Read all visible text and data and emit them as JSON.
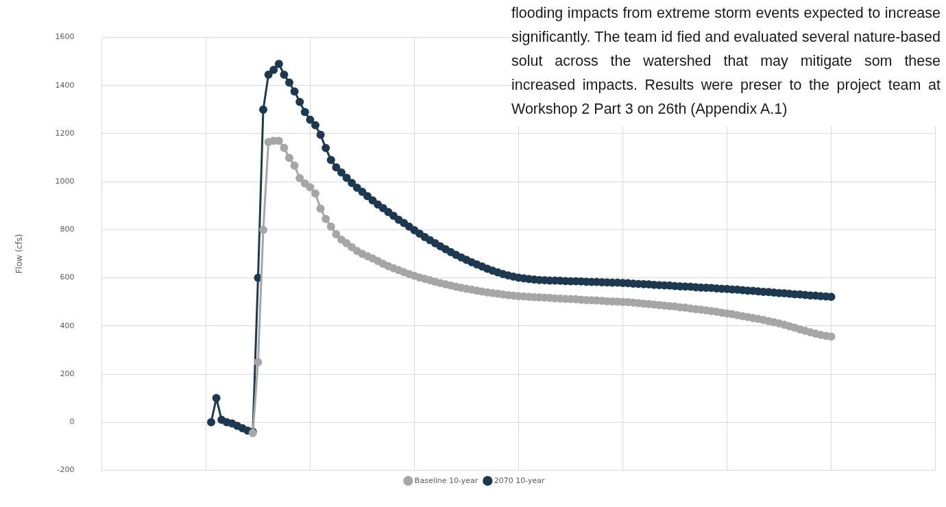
{
  "chart_data": {
    "type": "line",
    "ylabel": "Flow (cfs)",
    "categories": [
      null,
      null,
      null,
      null,
      null,
      null,
      null,
      null,
      null,
      null,
      null,
      null,
      null,
      null,
      null,
      null,
      null,
      null,
      null,
      null,
      null,
      null,
      null,
      null,
      null,
      null,
      null,
      null,
      null,
      null,
      null,
      null,
      null,
      null,
      null,
      null,
      null,
      null,
      null,
      null,
      null,
      null,
      null,
      null,
      null,
      null,
      null,
      null,
      null,
      null,
      null,
      null,
      null,
      null,
      null,
      null,
      null,
      null,
      null,
      null,
      null,
      null,
      null,
      null,
      null,
      null,
      null,
      null,
      null,
      null,
      null,
      null,
      null,
      null,
      null,
      null,
      null,
      null,
      null,
      null,
      null,
      null,
      null,
      null,
      null,
      null,
      null,
      null,
      null,
      null,
      null,
      null,
      null,
      null,
      null,
      null,
      null,
      null,
      null,
      null,
      null,
      null,
      null,
      null,
      null,
      null,
      null,
      null,
      null,
      null,
      null,
      null,
      null,
      null,
      null,
      null,
      null,
      null,
      null,
      null,
      null,
      null,
      null,
      null,
      null,
      null,
      null,
      null,
      null,
      null,
      null,
      null,
      null,
      null,
      null,
      null,
      null,
      null,
      null,
      null,
      null,
      null,
      null,
      null,
      null,
      null,
      null,
      null,
      null,
      null,
      null,
      null,
      null,
      null,
      null,
      null,
      null,
      null,
      null,
      null,
      null
    ],
    "series": [
      {
        "name": "Baseline 10-year",
        "color": "#a6a6a6",
        "values": [
          null,
          null,
          null,
          null,
          null,
          null,
          null,
          null,
          null,
          null,
          null,
          null,
          null,
          null,
          null,
          null,
          null,
          null,
          null,
          null,
          null,
          null,
          null,
          null,
          null,
          null,
          null,
          null,
          null,
          -45,
          250,
          800,
          1165,
          1170,
          1170,
          1141,
          1099,
          1067,
          1015,
          993,
          977,
          951,
          888,
          845,
          813,
          781,
          759,
          744,
          728,
          712,
          700,
          690,
          681,
          670,
          659,
          649,
          640,
          632,
          624,
          616,
          609,
          602,
          596,
          590,
          584,
          578,
          573,
          568,
          563,
          559,
          555,
          551,
          547,
          543,
          540,
          537,
          534,
          531,
          528,
          526,
          524,
          523,
          521,
          520,
          519,
          518,
          517,
          515,
          514,
          513,
          512,
          511,
          509,
          508,
          507,
          506,
          505,
          503,
          502,
          501,
          500,
          499,
          497,
          495,
          493,
          491,
          489,
          487,
          485,
          483,
          481,
          478,
          476,
          473,
          470,
          468,
          465,
          462,
          459,
          455,
          452,
          449,
          445,
          441,
          437,
          433,
          429,
          425,
          420,
          416,
          411,
          405,
          399,
          393,
          386,
          380,
          374,
          368,
          363,
          359,
          356,
          null,
          null,
          null,
          null,
          null,
          null,
          null,
          null,
          null,
          null,
          null,
          null,
          null,
          null,
          null,
          null,
          null,
          null,
          null,
          null
        ]
      },
      {
        "name": "2070 10-year",
        "color": "#1b3a52",
        "values": [
          null,
          null,
          null,
          null,
          null,
          null,
          null,
          null,
          null,
          null,
          null,
          null,
          null,
          null,
          null,
          null,
          null,
          null,
          null,
          null,
          null,
          0,
          100,
          10,
          0,
          -5,
          -15,
          -25,
          -35,
          -40,
          600,
          1300,
          1445,
          1465,
          1490,
          1445,
          1412,
          1375,
          1332,
          1290,
          1258,
          1235,
          1195,
          1140,
          1090,
          1060,
          1038,
          1016,
          995,
          975,
          958,
          940,
          922,
          905,
          890,
          874,
          858,
          842,
          828,
          813,
          798,
          784,
          770,
          757,
          744,
          731,
          719,
          707,
          696,
          685,
          675,
          665,
          656,
          647,
          638,
          630,
          623,
          616,
          610,
          605,
          601,
          598,
          595,
          593,
          591,
          590,
          589,
          589,
          588,
          587,
          586,
          586,
          585,
          584,
          583,
          583,
          582,
          581,
          580,
          580,
          579,
          578,
          576,
          575,
          574,
          573,
          571,
          570,
          569,
          568,
          566,
          565,
          564,
          563,
          561,
          560,
          559,
          558,
          556,
          555,
          554,
          552,
          551,
          549,
          547,
          546,
          544,
          542,
          541,
          539,
          537,
          536,
          534,
          532,
          531,
          529,
          527,
          526,
          524,
          523,
          521,
          null,
          null,
          null,
          null,
          null,
          null,
          null,
          null,
          null,
          null,
          null,
          null,
          null,
          null,
          null,
          null,
          null,
          null,
          null,
          null
        ]
      }
    ],
    "ylim": [
      -200,
      1600
    ],
    "yticks": [
      -200,
      0,
      200,
      400,
      600,
      800,
      1000,
      1200,
      1400,
      1600
    ],
    "grid": true,
    "legend": "bottom",
    "marker": "circle",
    "tick_labels": "y",
    "annotations": [
      "flooding impacts from extreme storm events expected to increase significantly. The team id fied and evaluated several nature-based solut across the watershed that may mitigate som these increased impacts. Results were preser to the project team at Workshop 2 Part 3 on 26th (Appendix A.1)"
    ]
  }
}
